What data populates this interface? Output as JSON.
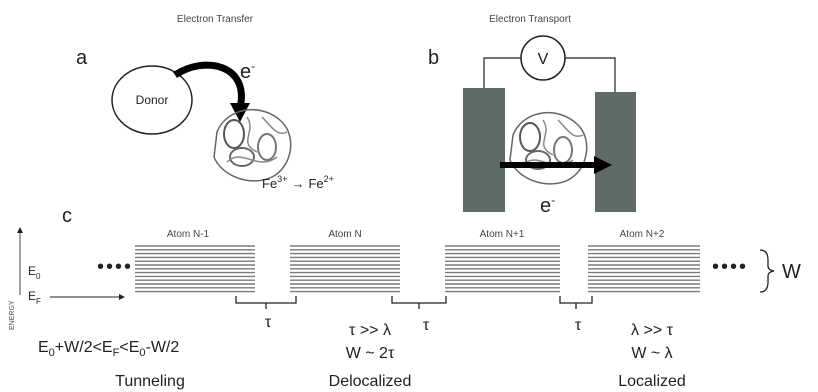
{
  "panel_a": {
    "label": "a",
    "title": "Electron Transfer",
    "donor": "Donor",
    "electron": "e",
    "electron_charge": "-",
    "reaction": [
      "Fe",
      "3+",
      "→",
      "Fe",
      "2+"
    ]
  },
  "panel_b": {
    "label": "b",
    "title": "Electron Transport",
    "meter": "V",
    "electron": "e",
    "electron_charge": "-"
  },
  "panel_c": {
    "label": "c",
    "atoms": [
      "Atom N-1",
      "Atom N",
      "Atom N+1",
      "Atom N+2"
    ],
    "e0": [
      "E",
      "0"
    ],
    "ef": [
      "E",
      "F"
    ],
    "energy_axis": "ENERGY",
    "width": "W",
    "gaps": [
      "τ",
      "τ",
      "τ"
    ],
    "tunneling_condition": [
      "E",
      "0",
      "+W/2<E",
      "F",
      "<E",
      "0",
      "-W/2"
    ],
    "tunneling": "Tunneling",
    "delocalized_conditions": [
      "τ >> λ",
      "W ~ 2τ"
    ],
    "delocalized": "Delocalized",
    "localized_conditions": [
      "λ >> τ",
      "W ~ λ"
    ],
    "localized": "Localized"
  }
}
